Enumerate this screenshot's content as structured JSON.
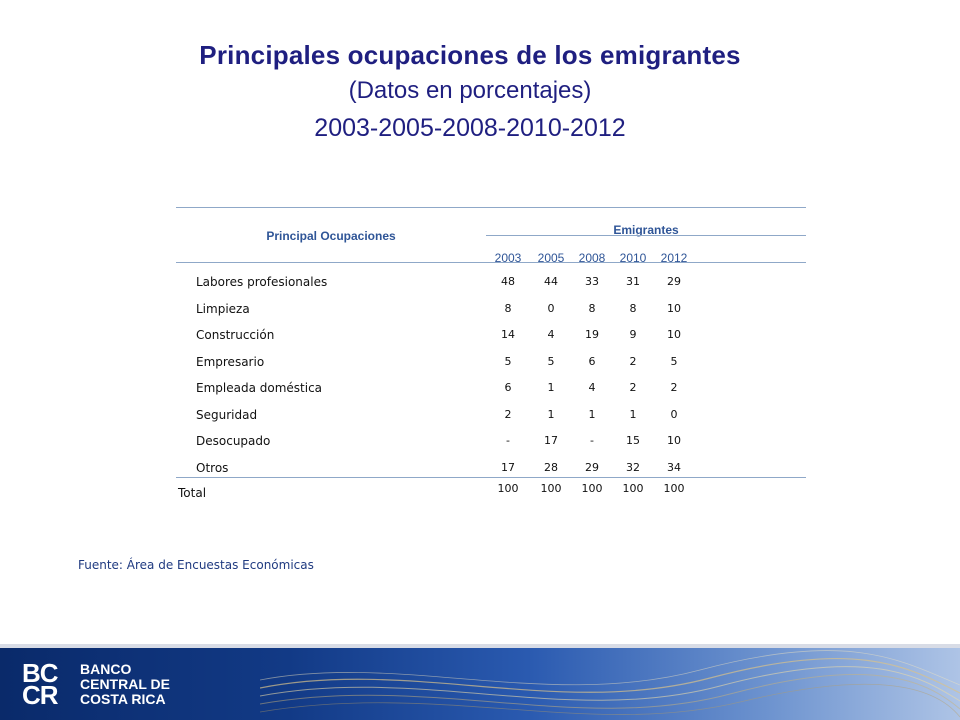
{
  "title": {
    "line1": "Principales ocupaciones de los emigrantes",
    "line2": "(Datos en porcentajes)",
    "line3": "2003-2005-2008-2010-2012"
  },
  "table": {
    "col_header": "Principal Ocupaciones",
    "group_header": "Emigrantes",
    "years": [
      "2003",
      "2005",
      "2008",
      "2010",
      "2012"
    ],
    "rows": [
      {
        "label": "Labores profesionales",
        "values": [
          "48",
          "44",
          "33",
          "31",
          "29"
        ]
      },
      {
        "label": "Limpieza",
        "values": [
          "8",
          "0",
          "8",
          "8",
          "10"
        ]
      },
      {
        "label": "Construcción",
        "values": [
          "14",
          "4",
          "19",
          "9",
          "10"
        ]
      },
      {
        "label": "Empresario",
        "values": [
          "5",
          "5",
          "6",
          "2",
          "5"
        ]
      },
      {
        "label": "Empleada doméstica",
        "values": [
          "6",
          "1",
          "4",
          "2",
          "2"
        ]
      },
      {
        "label": "Seguridad",
        "values": [
          "2",
          "1",
          "1",
          "1",
          "0"
        ]
      },
      {
        "label": "Desocupado",
        "values": [
          "-",
          "17",
          "-",
          "15",
          "10"
        ]
      },
      {
        "label": "Otros",
        "values": [
          "17",
          "28",
          "29",
          "32",
          "34"
        ]
      }
    ],
    "total": {
      "label": "Total",
      "values": [
        "100",
        "100",
        "100",
        "100",
        "100"
      ]
    }
  },
  "source": "Fuente: Área de Encuestas Económicas",
  "footer": {
    "logo_mark_top": "BC",
    "logo_mark_bottom": "CR",
    "logo_line1": "BANCO",
    "logo_line2": "CENTRAL DE",
    "logo_line3": "COSTA RICA"
  },
  "colors": {
    "title": "#1f1f80",
    "header": "#2f5597",
    "rule": "#8fa8c8",
    "footer": "#123a86"
  }
}
